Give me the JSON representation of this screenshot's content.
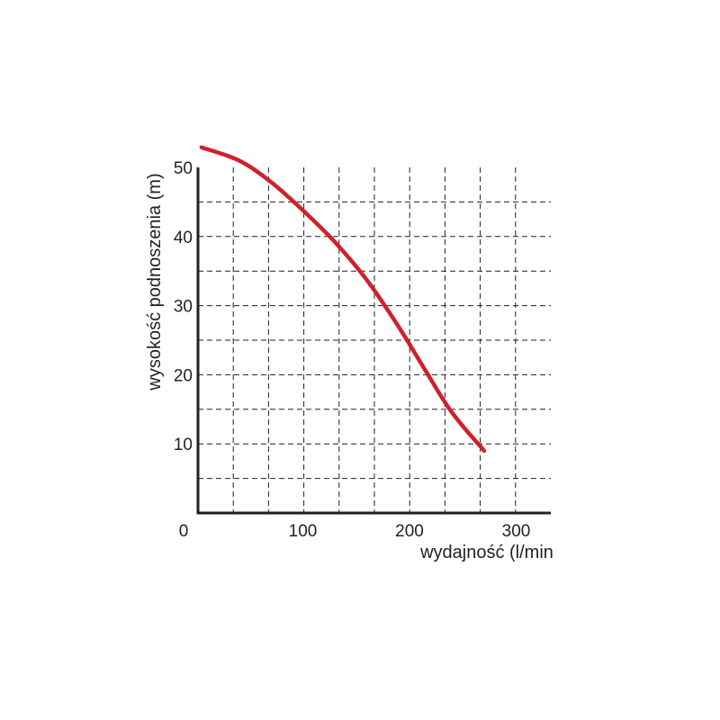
{
  "chart_data": {
    "type": "line",
    "title": "",
    "xlabel": "wydajność (l/min",
    "ylabel": "wysokość podnoszenia (m)",
    "xlim": [
      0,
      333
    ],
    "ylim": [
      0,
      50
    ],
    "x_ticks": [
      0,
      100,
      200,
      300
    ],
    "x_tick_labels": [
      "0",
      "100",
      "200",
      "300"
    ],
    "y_ticks": [
      10,
      20,
      30,
      40,
      50
    ],
    "y_tick_labels": [
      "10",
      "20",
      "30",
      "40",
      "50"
    ],
    "grid": true,
    "grid_style": "dashed",
    "series": [
      {
        "color": "#d0202a",
        "x": [
          5,
          40,
          70,
          100,
          130,
          160,
          190,
          215,
          240,
          270
        ],
        "y": [
          52.9,
          51.0,
          47.9,
          43.8,
          39.2,
          33.7,
          26.9,
          20.6,
          14.5,
          9.0
        ]
      }
    ]
  }
}
